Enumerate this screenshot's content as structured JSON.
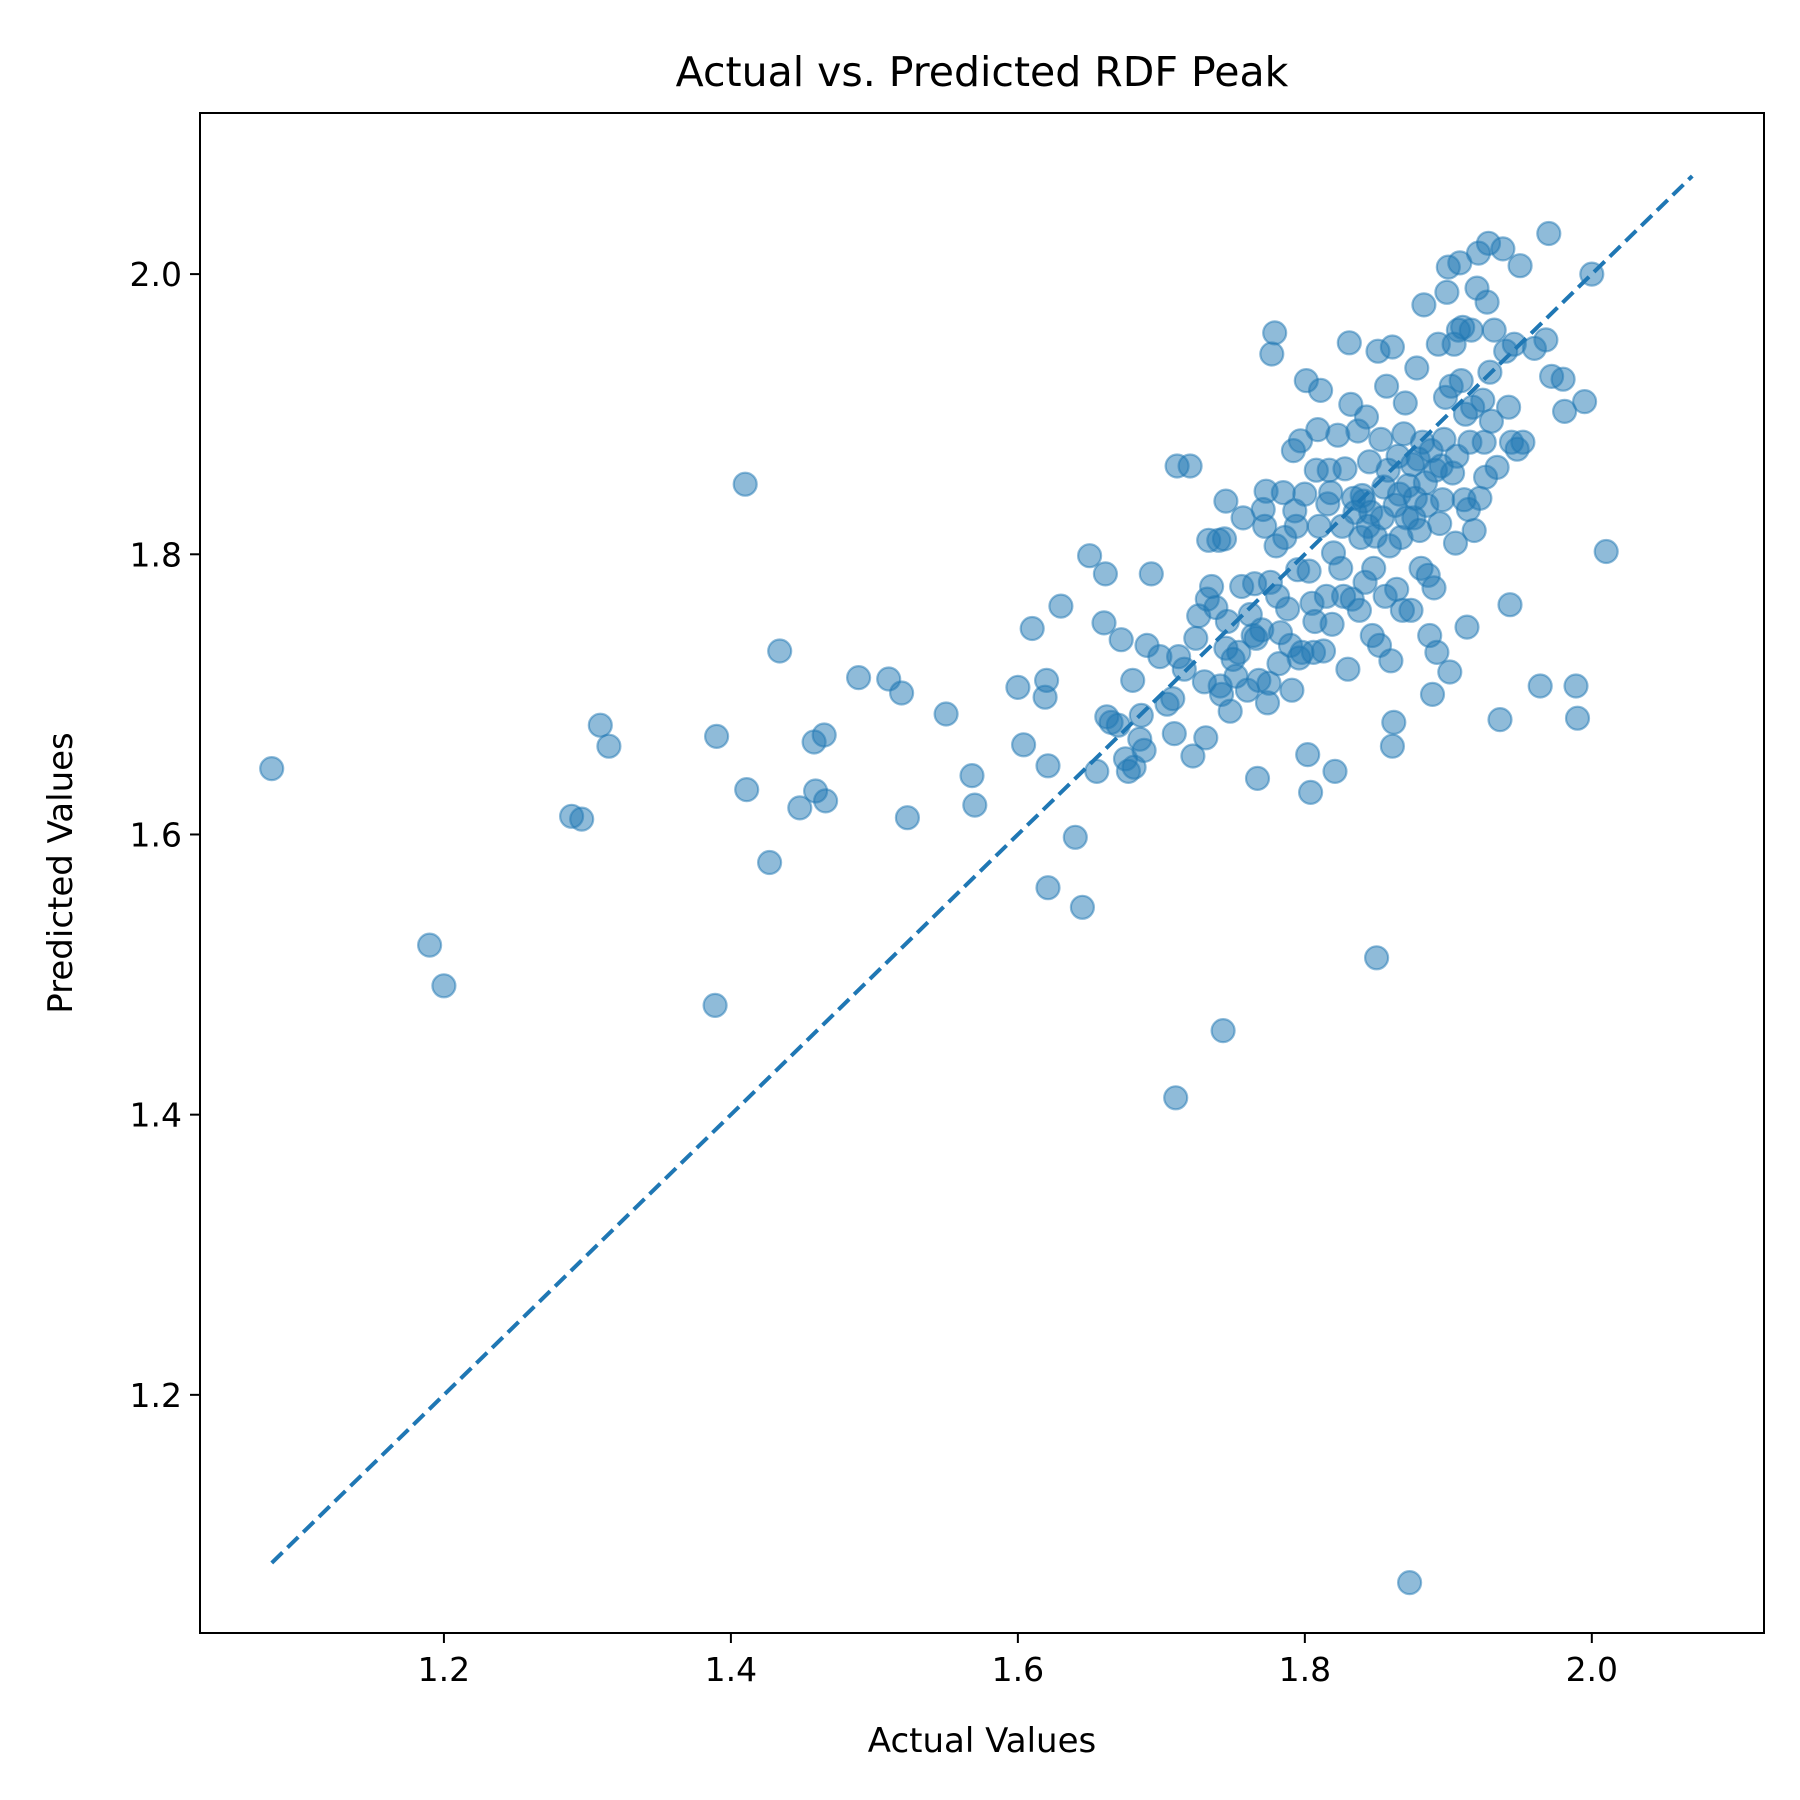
{
  "chart_data": {
    "type": "scatter",
    "title": "Actual vs. Predicted RDF Peak",
    "xlabel": "Actual Values",
    "ylabel": "Predicted Values",
    "xlim": [
      1.03,
      2.12
    ],
    "ylim": [
      1.03,
      2.115
    ],
    "xticks": [
      {
        "value": 1.2,
        "label": "1.2"
      },
      {
        "value": 1.4,
        "label": "1.4"
      },
      {
        "value": 1.6,
        "label": "1.6"
      },
      {
        "value": 1.8,
        "label": "1.8"
      },
      {
        "value": 2.0,
        "label": "2.0"
      }
    ],
    "yticks": [
      {
        "value": 1.2,
        "label": "1.2"
      },
      {
        "value": 1.4,
        "label": "1.4"
      },
      {
        "value": 1.6,
        "label": "1.6"
      },
      {
        "value": 1.8,
        "label": "1.8"
      },
      {
        "value": 2.0,
        "label": "2.0"
      }
    ],
    "grid": false,
    "point_color": "#1f77b4",
    "point_alpha": 0.5,
    "reference_line": {
      "style": "dashed",
      "color": "#1f77b4",
      "x": [
        1.08,
        2.07
      ],
      "y": [
        1.08,
        2.07
      ]
    },
    "points": [
      [
        1.08,
        1.647
      ],
      [
        1.19,
        1.521
      ],
      [
        1.2,
        1.492
      ],
      [
        1.289,
        1.613
      ],
      [
        1.296,
        1.611
      ],
      [
        1.309,
        1.678
      ],
      [
        1.315,
        1.663
      ],
      [
        1.389,
        1.478
      ],
      [
        1.39,
        1.67
      ],
      [
        1.41,
        1.85
      ],
      [
        1.411,
        1.632
      ],
      [
        1.427,
        1.58
      ],
      [
        1.434,
        1.731
      ],
      [
        1.448,
        1.619
      ],
      [
        1.458,
        1.666
      ],
      [
        1.459,
        1.631
      ],
      [
        1.465,
        1.671
      ],
      [
        1.466,
        1.624
      ],
      [
        1.489,
        1.712
      ],
      [
        1.51,
        1.711
      ],
      [
        1.519,
        1.701
      ],
      [
        1.523,
        1.612
      ],
      [
        1.55,
        1.686
      ],
      [
        1.568,
        1.642
      ],
      [
        1.57,
        1.621
      ],
      [
        1.6,
        1.705
      ],
      [
        1.604,
        1.664
      ],
      [
        1.61,
        1.747
      ],
      [
        1.619,
        1.698
      ],
      [
        1.62,
        1.71
      ],
      [
        1.621,
        1.649
      ],
      [
        1.621,
        1.562
      ],
      [
        1.63,
        1.763
      ],
      [
        1.64,
        1.598
      ],
      [
        1.645,
        1.548
      ],
      [
        1.65,
        1.799
      ],
      [
        1.655,
        1.645
      ],
      [
        1.66,
        1.751
      ],
      [
        1.661,
        1.786
      ],
      [
        1.662,
        1.684
      ],
      [
        1.665,
        1.68
      ],
      [
        1.67,
        1.678
      ],
      [
        1.672,
        1.739
      ],
      [
        1.675,
        1.654
      ],
      [
        1.677,
        1.645
      ],
      [
        1.68,
        1.71
      ],
      [
        1.681,
        1.648
      ],
      [
        1.685,
        1.668
      ],
      [
        1.686,
        1.685
      ],
      [
        1.688,
        1.66
      ],
      [
        1.69,
        1.735
      ],
      [
        1.693,
        1.786
      ],
      [
        1.699,
        1.727
      ],
      [
        1.704,
        1.693
      ],
      [
        1.708,
        1.697
      ],
      [
        1.709,
        1.672
      ],
      [
        1.71,
        1.412
      ],
      [
        1.711,
        1.863
      ],
      [
        1.712,
        1.727
      ],
      [
        1.716,
        1.718
      ],
      [
        1.72,
        1.863
      ],
      [
        1.722,
        1.656
      ],
      [
        1.724,
        1.74
      ],
      [
        1.726,
        1.756
      ],
      [
        1.73,
        1.709
      ],
      [
        1.731,
        1.669
      ],
      [
        1.732,
        1.768
      ],
      [
        1.733,
        1.81
      ],
      [
        1.735,
        1.777
      ],
      [
        1.738,
        1.762
      ],
      [
        1.74,
        1.81
      ],
      [
        1.741,
        1.706
      ],
      [
        1.742,
        1.7
      ],
      [
        1.744,
        1.811
      ],
      [
        1.743,
        1.46
      ],
      [
        1.745,
        1.733
      ],
      [
        1.745,
        1.838
      ],
      [
        1.746,
        1.752
      ],
      [
        1.748,
        1.688
      ],
      [
        1.75,
        1.725
      ],
      [
        1.752,
        1.713
      ],
      [
        1.754,
        1.73
      ],
      [
        1.756,
        1.777
      ],
      [
        1.757,
        1.826
      ],
      [
        1.76,
        1.703
      ],
      [
        1.762,
        1.757
      ],
      [
        1.764,
        1.742
      ],
      [
        1.765,
        1.779
      ],
      [
        1.766,
        1.74
      ],
      [
        1.767,
        1.64
      ],
      [
        1.768,
        1.71
      ],
      [
        1.77,
        1.746
      ],
      [
        1.771,
        1.832
      ],
      [
        1.772,
        1.82
      ],
      [
        1.773,
        1.845
      ],
      [
        1.774,
        1.694
      ],
      [
        1.775,
        1.708
      ],
      [
        1.776,
        1.78
      ],
      [
        1.777,
        1.943
      ],
      [
        1.779,
        1.958
      ],
      [
        1.78,
        1.806
      ],
      [
        1.781,
        1.77
      ],
      [
        1.782,
        1.722
      ],
      [
        1.783,
        1.744
      ],
      [
        1.785,
        1.844
      ],
      [
        1.786,
        1.812
      ],
      [
        1.788,
        1.761
      ],
      [
        1.79,
        1.735
      ],
      [
        1.791,
        1.703
      ],
      [
        1.792,
        1.874
      ],
      [
        1.793,
        1.831
      ],
      [
        1.794,
        1.82
      ],
      [
        1.795,
        1.789
      ],
      [
        1.796,
        1.726
      ],
      [
        1.797,
        1.881
      ],
      [
        1.798,
        1.73
      ],
      [
        1.8,
        1.843
      ],
      [
        1.801,
        1.924
      ],
      [
        1.802,
        1.657
      ],
      [
        1.803,
        1.788
      ],
      [
        1.804,
        1.63
      ],
      [
        1.805,
        1.765
      ],
      [
        1.806,
        1.73
      ],
      [
        1.807,
        1.752
      ],
      [
        1.808,
        1.86
      ],
      [
        1.809,
        1.889
      ],
      [
        1.81,
        1.82
      ],
      [
        1.811,
        1.917
      ],
      [
        1.813,
        1.731
      ],
      [
        1.815,
        1.77
      ],
      [
        1.816,
        1.836
      ],
      [
        1.817,
        1.86
      ],
      [
        1.818,
        1.844
      ],
      [
        1.819,
        1.75
      ],
      [
        1.82,
        1.801
      ],
      [
        1.821,
        1.645
      ],
      [
        1.823,
        1.885
      ],
      [
        1.825,
        1.79
      ],
      [
        1.826,
        1.82
      ],
      [
        1.827,
        1.77
      ],
      [
        1.828,
        1.861
      ],
      [
        1.83,
        1.718
      ],
      [
        1.831,
        1.951
      ],
      [
        1.832,
        1.907
      ],
      [
        1.833,
        1.768
      ],
      [
        1.834,
        1.84
      ],
      [
        1.835,
        1.83
      ],
      [
        1.837,
        1.888
      ],
      [
        1.838,
        1.76
      ],
      [
        1.839,
        1.812
      ],
      [
        1.84,
        1.842
      ],
      [
        1.841,
        1.838
      ],
      [
        1.842,
        1.78
      ],
      [
        1.843,
        1.898
      ],
      [
        1.844,
        1.82
      ],
      [
        1.845,
        1.866
      ],
      [
        1.846,
        1.83
      ],
      [
        1.847,
        1.742
      ],
      [
        1.848,
        1.79
      ],
      [
        1.849,
        1.813
      ],
      [
        1.85,
        1.512
      ],
      [
        1.851,
        1.945
      ],
      [
        1.852,
        1.735
      ],
      [
        1.853,
        1.882
      ],
      [
        1.854,
        1.826
      ],
      [
        1.855,
        1.848
      ],
      [
        1.856,
        1.77
      ],
      [
        1.857,
        1.92
      ],
      [
        1.858,
        1.86
      ],
      [
        1.859,
        1.806
      ],
      [
        1.86,
        1.724
      ],
      [
        1.861,
        1.948
      ],
      [
        1.862,
        1.68
      ],
      [
        1.861,
        1.663
      ],
      [
        1.863,
        1.835
      ],
      [
        1.864,
        1.775
      ],
      [
        1.865,
        1.87
      ],
      [
        1.866,
        1.843
      ],
      [
        1.867,
        1.812
      ],
      [
        1.868,
        1.76
      ],
      [
        1.869,
        1.886
      ],
      [
        1.87,
        1.908
      ],
      [
        1.871,
        1.826
      ],
      [
        1.872,
        1.849
      ],
      [
        1.873,
        1.066
      ],
      [
        1.874,
        1.76
      ],
      [
        1.875,
        1.864
      ],
      [
        1.876,
        1.826
      ],
      [
        1.877,
        1.84
      ],
      [
        1.878,
        1.933
      ],
      [
        1.879,
        1.868
      ],
      [
        1.88,
        1.817
      ],
      [
        1.881,
        1.79
      ],
      [
        1.882,
        1.88
      ],
      [
        1.883,
        1.978
      ],
      [
        1.884,
        1.851
      ],
      [
        1.885,
        1.835
      ],
      [
        1.886,
        1.785
      ],
      [
        1.887,
        1.742
      ],
      [
        1.888,
        1.874
      ],
      [
        1.889,
        1.7
      ],
      [
        1.89,
        1.776
      ],
      [
        1.891,
        1.86
      ],
      [
        1.892,
        1.73
      ],
      [
        1.893,
        1.95
      ],
      [
        1.894,
        1.822
      ],
      [
        1.895,
        1.863
      ],
      [
        1.896,
        1.839
      ],
      [
        1.897,
        1.882
      ],
      [
        1.898,
        1.912
      ],
      [
        1.899,
        1.987
      ],
      [
        1.9,
        2.005
      ],
      [
        1.901,
        1.716
      ],
      [
        1.902,
        1.92
      ],
      [
        1.903,
        1.858
      ],
      [
        1.904,
        1.95
      ],
      [
        1.905,
        1.808
      ],
      [
        1.906,
        1.87
      ],
      [
        1.907,
        1.96
      ],
      [
        1.908,
        2.008
      ],
      [
        1.909,
        1.924
      ],
      [
        1.91,
        1.962
      ],
      [
        1.911,
        1.839
      ],
      [
        1.912,
        1.9
      ],
      [
        1.913,
        1.748
      ],
      [
        1.914,
        1.832
      ],
      [
        1.915,
        1.88
      ],
      [
        1.916,
        1.96
      ],
      [
        1.917,
        1.905
      ],
      [
        1.918,
        1.817
      ],
      [
        1.92,
        1.99
      ],
      [
        1.921,
        2.015
      ],
      [
        1.922,
        1.84
      ],
      [
        1.924,
        1.91
      ],
      [
        1.925,
        1.88
      ],
      [
        1.926,
        1.855
      ],
      [
        1.927,
        1.98
      ],
      [
        1.928,
        2.022
      ],
      [
        1.929,
        1.93
      ],
      [
        1.93,
        1.895
      ],
      [
        1.932,
        1.96
      ],
      [
        1.934,
        1.862
      ],
      [
        1.936,
        1.682
      ],
      [
        1.938,
        2.018
      ],
      [
        1.94,
        1.945
      ],
      [
        1.942,
        1.905
      ],
      [
        1.943,
        1.764
      ],
      [
        1.944,
        1.88
      ],
      [
        1.946,
        1.95
      ],
      [
        1.948,
        1.875
      ],
      [
        1.95,
        2.006
      ],
      [
        1.952,
        1.88
      ],
      [
        1.96,
        1.947
      ],
      [
        1.964,
        1.706
      ],
      [
        1.968,
        1.953
      ],
      [
        1.97,
        2.029
      ],
      [
        1.972,
        1.927
      ],
      [
        1.98,
        1.925
      ],
      [
        1.981,
        1.902
      ],
      [
        1.989,
        1.706
      ],
      [
        1.99,
        1.683
      ],
      [
        1.995,
        1.909
      ],
      [
        2.0,
        2.0
      ],
      [
        2.01,
        1.802
      ]
    ]
  }
}
